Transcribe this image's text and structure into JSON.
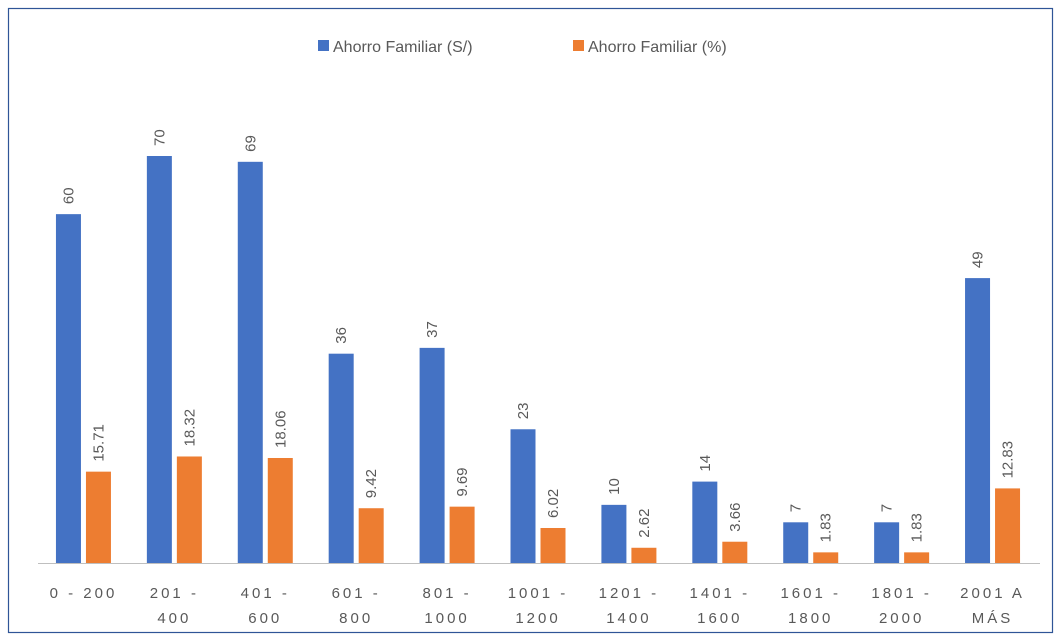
{
  "chart_data": {
    "type": "bar",
    "categories": [
      "0 - 200",
      "201 - 400",
      "401 - 600",
      "601 - 800",
      "801 - 1000",
      "1001 - 1200",
      "1201 - 1400",
      "1401 - 1600",
      "1601 - 1800",
      "1801 - 2000",
      "2001 A MÁS"
    ],
    "series": [
      {
        "name": "Ahorro Familiar (S/)",
        "color": "#4472c4",
        "values": [
          60,
          70,
          69,
          36,
          37,
          23,
          10,
          14,
          7,
          7,
          49
        ]
      },
      {
        "name": "Ahorro Familiar (%)",
        "color": "#ed7d31",
        "values": [
          15.71,
          18.32,
          18.06,
          9.42,
          9.69,
          6.02,
          2.62,
          3.66,
          1.83,
          1.83,
          12.83
        ]
      }
    ],
    "legend": "top"
  }
}
